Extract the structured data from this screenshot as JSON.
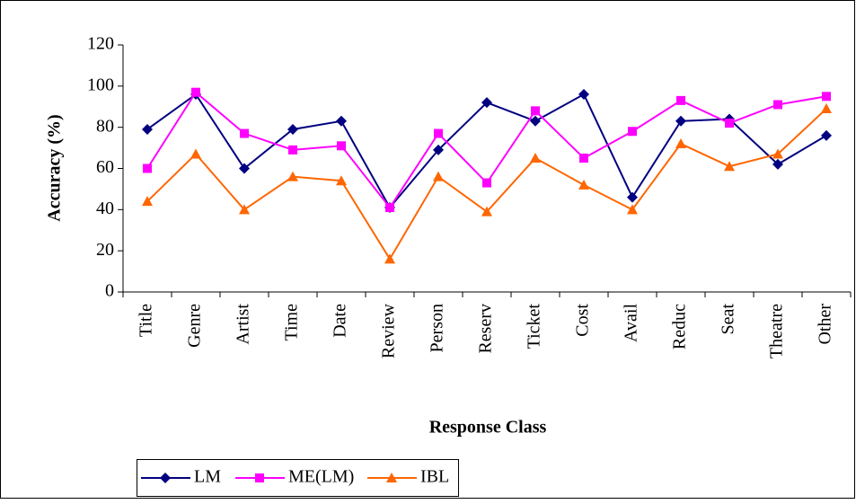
{
  "chart_data": {
    "type": "line",
    "x_label": "Response Class",
    "y_label": "Accuracy (%)",
    "categories": [
      "Title",
      "Genre",
      "Artist",
      "Time",
      "Date",
      "Review",
      "Person",
      "Reserv",
      "Ticket",
      "Cost",
      "Avail",
      "Reduc",
      "Seat",
      "Theatre",
      "Other"
    ],
    "series": [
      {
        "name": "LM",
        "color": "#000080",
        "marker": "diamond",
        "values": [
          79,
          96,
          60,
          79,
          83,
          41,
          69,
          92,
          83,
          96,
          46,
          83,
          84,
          62,
          76
        ]
      },
      {
        "name": "ME(LM)",
        "color": "#ff00ff",
        "marker": "square",
        "values": [
          60,
          97,
          77,
          69,
          71,
          41,
          77,
          53,
          88,
          65,
          78,
          93,
          82,
          91,
          95
        ]
      },
      {
        "name": "IBL",
        "color": "#ff6600",
        "marker": "triangle",
        "values": [
          44,
          67,
          40,
          56,
          54,
          16,
          56,
          39,
          65,
          52,
          40,
          72,
          61,
          67,
          89
        ]
      }
    ],
    "ylim": [
      0,
      120
    ],
    "yticks": [
      0,
      20,
      40,
      60,
      80,
      100,
      120
    ],
    "grid": false,
    "legend": "bottom"
  }
}
